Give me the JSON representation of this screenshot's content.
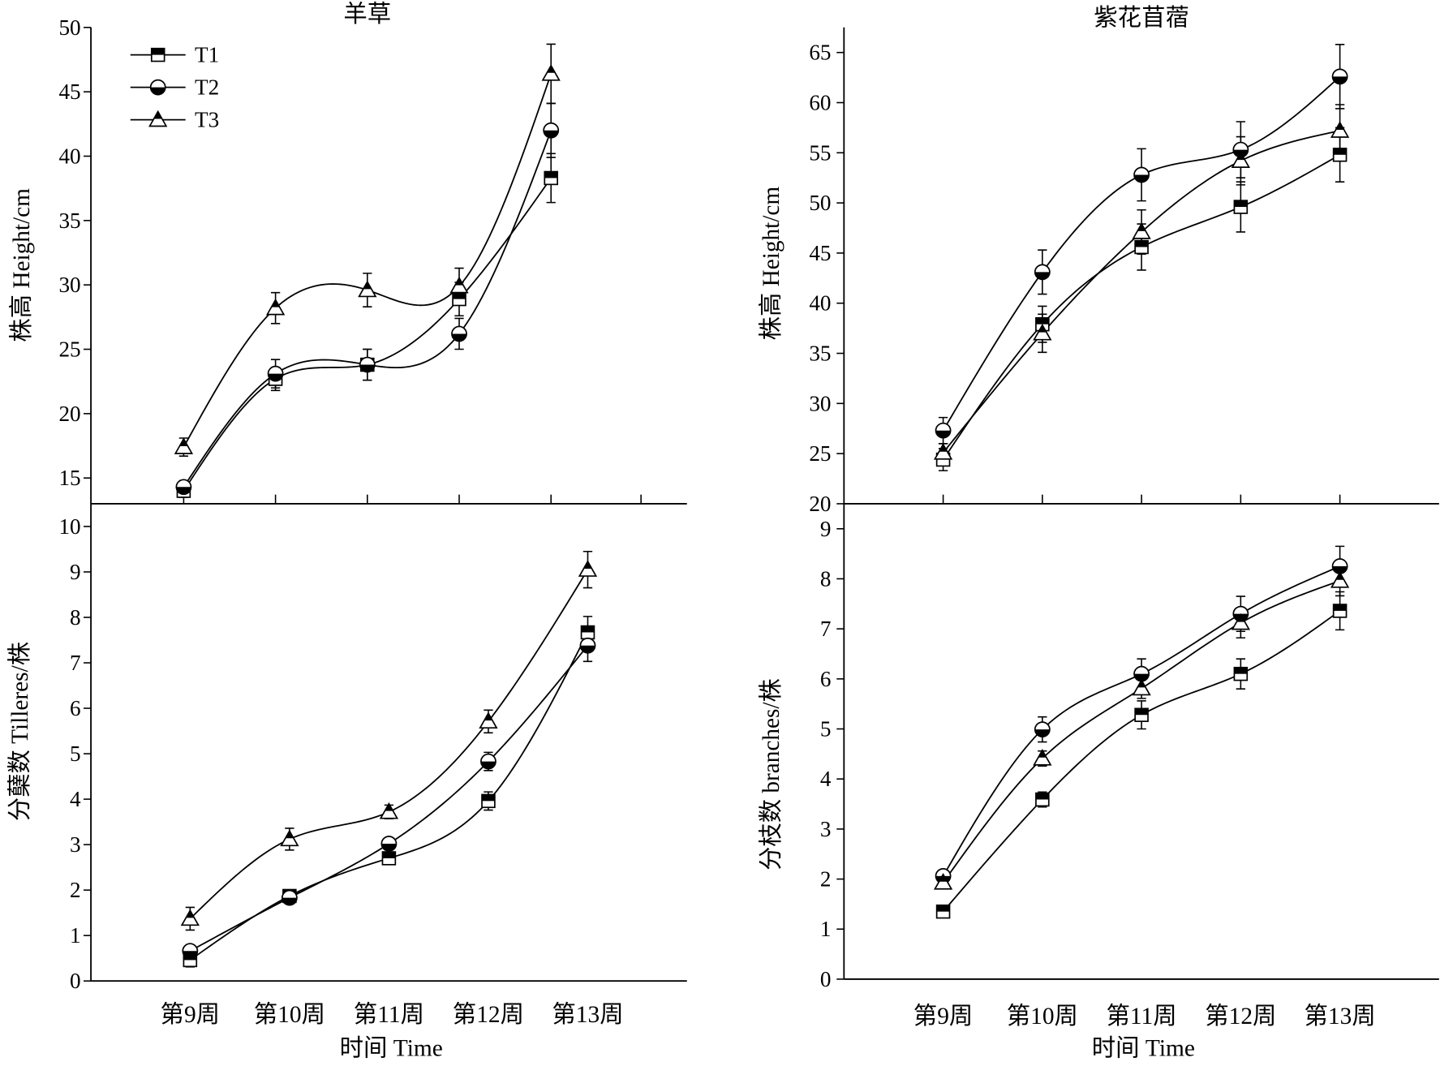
{
  "colors": {
    "line": "#000000",
    "marker_fill": "#000000",
    "background": "#ffffff"
  },
  "chart_data": [
    {
      "type": "line",
      "title": "羊草",
      "ylabel": "株高 Height/cm",
      "ylim": [
        13,
        50
      ],
      "yticks": [
        15,
        20,
        25,
        30,
        35,
        40,
        45,
        50
      ],
      "grid": false,
      "smooth": true,
      "legend": {
        "placement": "top-left"
      },
      "series": [
        {
          "name": "T1",
          "marker": "square-top-half-filled",
          "values": [
            14.0,
            22.7,
            23.8,
            28.9,
            38.3
          ],
          "errors": [
            0.5,
            0.9,
            1.2,
            1.3,
            1.9
          ]
        },
        {
          "name": "T2",
          "marker": "circle-bottom-half-filled",
          "values": [
            14.3,
            23.1,
            23.8,
            26.2,
            42.0
          ],
          "errors": [
            0.5,
            1.1,
            1.2,
            1.2,
            2.1
          ]
        },
        {
          "name": "T3",
          "marker": "triangle-top-half-filled",
          "values": [
            17.4,
            28.2,
            29.6,
            29.9,
            46.4
          ],
          "errors": [
            0.7,
            1.2,
            1.3,
            1.4,
            2.3
          ]
        }
      ]
    },
    {
      "type": "line",
      "title": "紫花苜蓿",
      "ylabel": "株高 Height/cm",
      "ylim": [
        20,
        67.5
      ],
      "yticks": [
        20,
        25,
        30,
        35,
        40,
        45,
        50,
        55,
        60,
        65
      ],
      "grid": false,
      "smooth": true,
      "series": [
        {
          "name": "T1",
          "marker": "square-top-half-filled",
          "values": [
            24.4,
            37.9,
            45.6,
            49.6,
            54.8
          ],
          "errors": [
            1.1,
            1.8,
            2.3,
            2.5,
            2.7
          ]
        },
        {
          "name": "T2",
          "marker": "circle-bottom-half-filled",
          "values": [
            27.3,
            43.1,
            52.8,
            55.3,
            62.6
          ],
          "errors": [
            1.3,
            2.2,
            2.6,
            2.8,
            3.2
          ]
        },
        {
          "name": "T3",
          "marker": "triangle-top-half-filled",
          "values": [
            25.1,
            37.0,
            47.1,
            54.2,
            57.2
          ],
          "errors": [
            0.9,
            1.9,
            2.2,
            2.4,
            2.6
          ]
        }
      ]
    },
    {
      "type": "line",
      "xlabel": "时间 Time",
      "ylabel": "分蘖数 Tilleres/株",
      "categories": [
        "第9周",
        "第10周",
        "第11周",
        "第12周",
        "第13周"
      ],
      "ylim": [
        0,
        10.5
      ],
      "yticks": [
        0,
        1,
        2,
        3,
        4,
        5,
        6,
        7,
        8,
        9,
        10
      ],
      "grid": false,
      "smooth": true,
      "series": [
        {
          "name": "T1",
          "marker": "square-top-half-filled",
          "values": [
            0.46,
            1.87,
            2.7,
            3.96,
            7.67
          ],
          "errors": [
            0.15,
            0.1,
            0.1,
            0.2,
            0.35
          ]
        },
        {
          "name": "T2",
          "marker": "circle-bottom-half-filled",
          "values": [
            0.66,
            1.83,
            3.02,
            4.83,
            7.38
          ],
          "errors": [
            0.1,
            0.1,
            0.1,
            0.2,
            0.35
          ]
        },
        {
          "name": "T3",
          "marker": "triangle-top-half-filled",
          "values": [
            1.37,
            3.12,
            3.72,
            5.71,
            9.05
          ],
          "errors": [
            0.25,
            0.24,
            0.15,
            0.25,
            0.4
          ]
        }
      ]
    },
    {
      "type": "line",
      "xlabel": "时间 Time",
      "ylabel": "分枝数 branches/株",
      "categories": [
        "第9周",
        "第10周",
        "第11周",
        "第12周",
        "第13周"
      ],
      "ylim": [
        0,
        9.5
      ],
      "yticks": [
        0,
        1,
        2,
        3,
        4,
        5,
        6,
        7,
        8,
        9
      ],
      "grid": false,
      "smooth": true,
      "series": [
        {
          "name": "T1",
          "marker": "square-top-half-filled",
          "values": [
            1.35,
            3.59,
            5.28,
            6.1,
            7.36
          ],
          "errors": [
            0.08,
            0.15,
            0.28,
            0.3,
            0.38
          ]
        },
        {
          "name": "T2",
          "marker": "circle-bottom-half-filled",
          "values": [
            2.06,
            4.99,
            6.1,
            7.3,
            8.25
          ],
          "errors": [
            0.1,
            0.25,
            0.3,
            0.35,
            0.4
          ]
        },
        {
          "name": "T3",
          "marker": "triangle-top-half-filled",
          "values": [
            1.93,
            4.41,
            5.81,
            7.12,
            7.96
          ],
          "errors": [
            0.1,
            0.15,
            0.2,
            0.3,
            0.3
          ]
        }
      ]
    }
  ]
}
